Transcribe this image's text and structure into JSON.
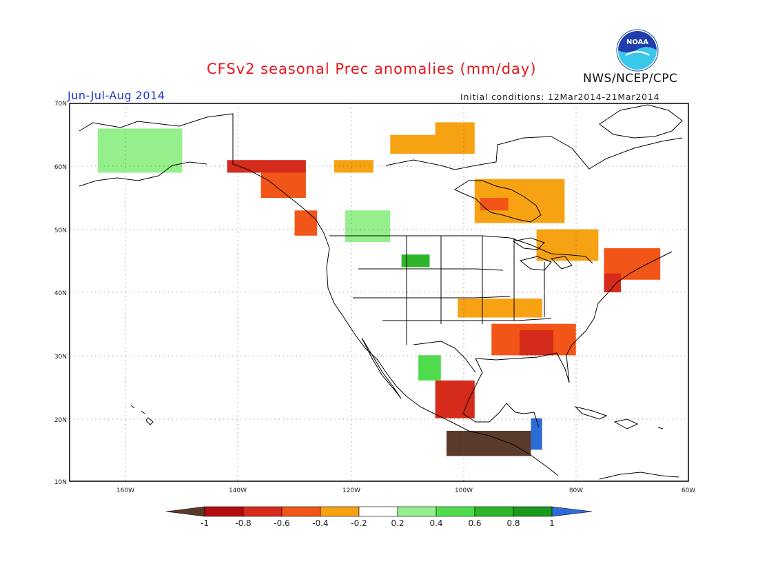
{
  "title": "CFSv2 seasonal Prec anomalies (mm/day)",
  "agency": "NWS/NCEP/CPC",
  "logo": {
    "text": "NOAA",
    "icon": "noaa-logo"
  },
  "season": "Jun-Jul-Aug 2014",
  "initial_conditions": "Initial conditions: 12Mar2014-21Mar2014",
  "axes": {
    "lat_labels": [
      "70N",
      "60N",
      "50N",
      "40N",
      "30N",
      "20N",
      "10N"
    ],
    "lon_labels": [
      "160W",
      "140W",
      "120W",
      "100W",
      "80W",
      "60W"
    ]
  },
  "colorbar": {
    "tick_labels": [
      "-1",
      "-0.8",
      "-0.6",
      "-0.4",
      "-0.2",
      "0.2",
      "0.4",
      "0.6",
      "0.8",
      "1"
    ],
    "colors": {
      "below_min": "#5a3a2a",
      "-1_-0.8": "#b40e0e",
      "-0.8_-0.6": "#d62a1a",
      "-0.6_-0.4": "#f25518",
      "-0.4_-0.2": "#f7a213",
      "-0.2_0.2": "#ffffff",
      "0.2_0.4": "#95f08c",
      "0.4_0.6": "#4fdc4c",
      "0.6_0.8": "#2fb52a",
      "0.8_1": "#199a1a",
      "above_max": "#2d6bd6"
    }
  },
  "chart_data": {
    "type": "heatmap",
    "title": "CFSv2 seasonal Prec anomalies (mm/day)",
    "lon_range": [
      "170W",
      "60W"
    ],
    "lat_range": [
      "10N",
      "70N"
    ],
    "levels": [
      -1,
      -0.8,
      -0.6,
      -0.4,
      -0.2,
      0.2,
      0.4,
      0.6,
      0.8,
      1
    ],
    "regions": [
      {
        "lon": [
          -142,
          -128
        ],
        "lat": [
          59,
          61
        ],
        "value": -0.7
      },
      {
        "lon": [
          -136,
          -128
        ],
        "lat": [
          55,
          59
        ],
        "value": -0.6
      },
      {
        "lon": [
          -130,
          -126
        ],
        "lat": [
          49,
          53
        ],
        "value": -0.5
      },
      {
        "lon": [
          -123,
          -116
        ],
        "lat": [
          59,
          61
        ],
        "value": -0.3
      },
      {
        "lon": [
          -105,
          -98
        ],
        "lat": [
          62,
          67
        ],
        "value": -0.3
      },
      {
        "lon": [
          -113,
          -104
        ],
        "lat": [
          62,
          65
        ],
        "value": -0.3
      },
      {
        "lon": [
          -98,
          -82
        ],
        "lat": [
          51,
          58
        ],
        "value": -0.3
      },
      {
        "lon": [
          -97,
          -92
        ],
        "lat": [
          53,
          55
        ],
        "value": -0.6
      },
      {
        "lon": [
          -87,
          -76
        ],
        "lat": [
          45,
          50
        ],
        "value": -0.3
      },
      {
        "lon": [
          -75,
          -65
        ],
        "lat": [
          42,
          47
        ],
        "value": -0.5
      },
      {
        "lon": [
          -75,
          -72
        ],
        "lat": [
          40,
          43
        ],
        "value": -0.8
      },
      {
        "lon": [
          -101,
          -86
        ],
        "lat": [
          36,
          39
        ],
        "value": -0.3
      },
      {
        "lon": [
          -95,
          -80
        ],
        "lat": [
          30,
          35
        ],
        "value": -0.6
      },
      {
        "lon": [
          -90,
          -84
        ],
        "lat": [
          30,
          34
        ],
        "value": -0.8
      },
      {
        "lon": [
          -105,
          -98
        ],
        "lat": [
          20,
          26
        ],
        "value": -0.7
      },
      {
        "lon": [
          -103,
          -88
        ],
        "lat": [
          14,
          18
        ],
        "value": -1.1
      },
      {
        "lon": [
          -121,
          -113
        ],
        "lat": [
          48,
          53
        ],
        "value": 0.3
      },
      {
        "lon": [
          -111,
          -106
        ],
        "lat": [
          44,
          46
        ],
        "value": 0.7
      },
      {
        "lon": [
          -108,
          -104
        ],
        "lat": [
          26,
          30
        ],
        "value": 0.5
      },
      {
        "lon": [
          -88,
          -86
        ],
        "lat": [
          15,
          20
        ],
        "value": 1.1
      },
      {
        "lon": [
          -165,
          -150
        ],
        "lat": [
          59,
          66
        ],
        "value": 0.3
      }
    ]
  }
}
